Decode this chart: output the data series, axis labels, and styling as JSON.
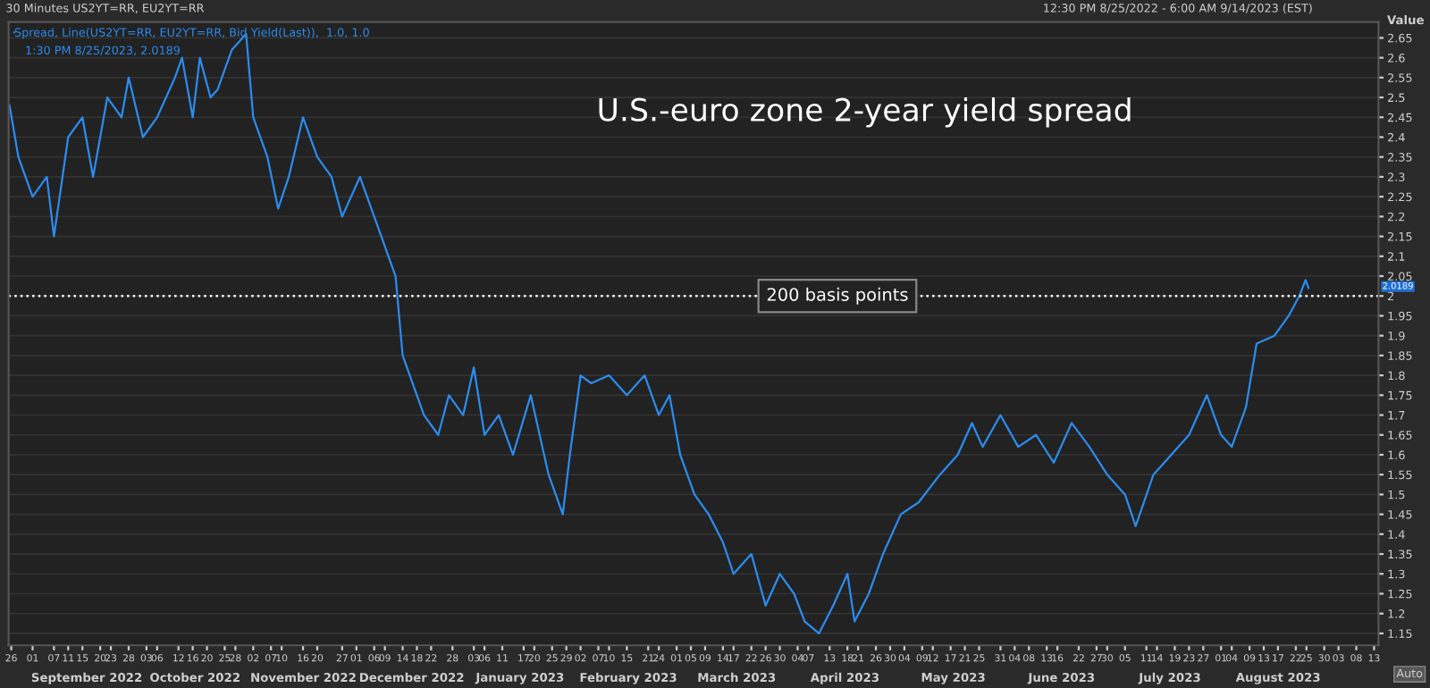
{
  "chart_data": {
    "type": "line",
    "title": "U.S.-euro zone 2-year yield spread",
    "ylabel": "Value",
    "x": [
      "2022-08-25T12:30",
      "2022-08-28",
      "2022-09-01",
      "2022-09-05",
      "2022-09-07",
      "2022-09-11",
      "2022-09-15",
      "2022-09-18",
      "2022-09-22",
      "2022-09-26",
      "2022-09-28",
      "2022-10-02",
      "2022-10-06",
      "2022-10-11",
      "2022-10-13",
      "2022-10-16",
      "2022-10-18",
      "2022-10-21",
      "2022-10-23",
      "2022-10-27",
      "2022-10-31",
      "2022-11-02",
      "2022-11-06",
      "2022-11-09",
      "2022-11-12",
      "2022-11-16",
      "2022-11-20",
      "2022-11-24",
      "2022-11-27",
      "2022-12-02",
      "2022-12-06",
      "2022-12-10",
      "2022-12-12",
      "2022-12-14",
      "2022-12-16",
      "2022-12-20",
      "2022-12-24",
      "2022-12-27",
      "2022-12-31",
      "2023-01-03",
      "2023-01-06",
      "2023-01-10",
      "2023-01-14",
      "2023-01-19",
      "2023-01-24",
      "2023-01-28",
      "2023-01-30",
      "2023-02-02",
      "2023-02-05",
      "2023-02-10",
      "2023-02-15",
      "2023-02-20",
      "2023-02-24",
      "2023-02-27",
      "2023-03-02",
      "2023-03-06",
      "2023-03-10",
      "2023-03-14",
      "2023-03-17",
      "2023-03-22",
      "2023-03-26",
      "2023-03-30",
      "2023-04-03",
      "2023-04-06",
      "2023-04-10",
      "2023-04-14",
      "2023-04-18",
      "2023-04-20",
      "2023-04-24",
      "2023-04-28",
      "2023-05-03",
      "2023-05-08",
      "2023-05-14",
      "2023-05-19",
      "2023-05-23",
      "2023-05-26",
      "2023-05-31",
      "2023-06-05",
      "2023-06-10",
      "2023-06-15",
      "2023-06-20",
      "2023-06-25",
      "2023-06-30",
      "2023-07-05",
      "2023-07-08",
      "2023-07-13",
      "2023-07-18",
      "2023-07-23",
      "2023-07-28",
      "2023-08-01",
      "2023-08-04",
      "2023-08-08",
      "2023-08-11",
      "2023-08-16",
      "2023-08-20",
      "2023-08-23",
      "2023-08-24T18:00",
      "2023-08-25T13:30"
    ],
    "series": [
      {
        "name": "Spread, Line(US2YT=RR, EU2YT=RR, Bid Yield(Last)),  1.0, 1.0",
        "color": "#2b8cf0",
        "values": [
          2.48,
          2.35,
          2.25,
          2.3,
          2.15,
          2.4,
          2.45,
          2.3,
          2.5,
          2.45,
          2.55,
          2.4,
          2.45,
          2.55,
          2.6,
          2.45,
          2.6,
          2.5,
          2.52,
          2.62,
          2.66,
          2.45,
          2.35,
          2.22,
          2.3,
          2.45,
          2.35,
          2.3,
          2.2,
          2.3,
          2.2,
          2.1,
          2.05,
          1.85,
          1.8,
          1.7,
          1.65,
          1.75,
          1.7,
          1.82,
          1.65,
          1.7,
          1.6,
          1.75,
          1.55,
          1.45,
          1.6,
          1.8,
          1.78,
          1.8,
          1.75,
          1.8,
          1.7,
          1.75,
          1.6,
          1.5,
          1.45,
          1.38,
          1.3,
          1.35,
          1.22,
          1.3,
          1.25,
          1.18,
          1.15,
          1.22,
          1.3,
          1.18,
          1.25,
          1.35,
          1.45,
          1.48,
          1.55,
          1.6,
          1.68,
          1.62,
          1.7,
          1.62,
          1.65,
          1.58,
          1.68,
          1.62,
          1.55,
          1.5,
          1.42,
          1.55,
          1.6,
          1.65,
          1.75,
          1.65,
          1.62,
          1.72,
          1.88,
          1.9,
          1.95,
          2.0,
          2.04,
          2.02
        ]
      }
    ],
    "xlim": [
      "2022-08-25T06:00",
      "2023-09-14T06:00"
    ],
    "xticks": [
      {
        "value": "2022-08-26",
        "label": "26"
      },
      {
        "value": "2022-09-01",
        "label": "01"
      },
      {
        "value": "2022-09-07",
        "label": "07"
      },
      {
        "value": "2022-09-11",
        "label": "11"
      },
      {
        "value": "2022-09-15",
        "label": "15"
      },
      {
        "value": "2022-09-20",
        "label": "20"
      },
      {
        "value": "2022-09-23",
        "label": "23"
      },
      {
        "value": "2022-09-28",
        "label": "28"
      },
      {
        "value": "2022-10-03",
        "label": "03"
      },
      {
        "value": "2022-10-06",
        "label": "06"
      },
      {
        "value": "2022-10-12",
        "label": "12"
      },
      {
        "value": "2022-10-16",
        "label": "16"
      },
      {
        "value": "2022-10-20",
        "label": "20"
      },
      {
        "value": "2022-10-25",
        "label": "25"
      },
      {
        "value": "2022-10-28",
        "label": "28"
      },
      {
        "value": "2022-11-02",
        "label": "02"
      },
      {
        "value": "2022-11-07",
        "label": "07"
      },
      {
        "value": "2022-11-10",
        "label": "10"
      },
      {
        "value": "2022-11-16",
        "label": "16"
      },
      {
        "value": "2022-11-20",
        "label": "20"
      },
      {
        "value": "2022-11-27",
        "label": "27"
      },
      {
        "value": "2022-12-01",
        "label": "01"
      },
      {
        "value": "2022-12-06",
        "label": "06"
      },
      {
        "value": "2022-12-09",
        "label": "09"
      },
      {
        "value": "2022-12-14",
        "label": "14"
      },
      {
        "value": "2022-12-18",
        "label": "18"
      },
      {
        "value": "2022-12-22",
        "label": "22"
      },
      {
        "value": "2022-12-28",
        "label": "28"
      },
      {
        "value": "2023-01-03",
        "label": "03"
      },
      {
        "value": "2023-01-06",
        "label": "06"
      },
      {
        "value": "2023-01-11",
        "label": "11"
      },
      {
        "value": "2023-01-17",
        "label": "17"
      },
      {
        "value": "2023-01-20",
        "label": "20"
      },
      {
        "value": "2023-01-25",
        "label": "25"
      },
      {
        "value": "2023-01-29",
        "label": "29"
      },
      {
        "value": "2023-02-02",
        "label": "02"
      },
      {
        "value": "2023-02-07",
        "label": "07"
      },
      {
        "value": "2023-02-10",
        "label": "10"
      },
      {
        "value": "2023-02-15",
        "label": "15"
      },
      {
        "value": "2023-02-21",
        "label": "21"
      },
      {
        "value": "2023-02-24",
        "label": "24"
      },
      {
        "value": "2023-03-01",
        "label": "01"
      },
      {
        "value": "2023-03-05",
        "label": "05"
      },
      {
        "value": "2023-03-09",
        "label": "09"
      },
      {
        "value": "2023-03-14",
        "label": "14"
      },
      {
        "value": "2023-03-17",
        "label": "17"
      },
      {
        "value": "2023-03-22",
        "label": "22"
      },
      {
        "value": "2023-03-26",
        "label": "26"
      },
      {
        "value": "2023-03-30",
        "label": "30"
      },
      {
        "value": "2023-04-04",
        "label": "04"
      },
      {
        "value": "2023-04-07",
        "label": "07"
      },
      {
        "value": "2023-04-13",
        "label": "13"
      },
      {
        "value": "2023-04-18",
        "label": "18"
      },
      {
        "value": "2023-04-21",
        "label": "21"
      },
      {
        "value": "2023-04-26",
        "label": "26"
      },
      {
        "value": "2023-04-30",
        "label": "30"
      },
      {
        "value": "2023-05-04",
        "label": "04"
      },
      {
        "value": "2023-05-09",
        "label": "09"
      },
      {
        "value": "2023-05-12",
        "label": "12"
      },
      {
        "value": "2023-05-17",
        "label": "17"
      },
      {
        "value": "2023-05-21",
        "label": "21"
      },
      {
        "value": "2023-05-25",
        "label": "25"
      },
      {
        "value": "2023-05-31",
        "label": "31"
      },
      {
        "value": "2023-06-04",
        "label": "04"
      },
      {
        "value": "2023-06-08",
        "label": "08"
      },
      {
        "value": "2023-06-13",
        "label": "13"
      },
      {
        "value": "2023-06-16",
        "label": "16"
      },
      {
        "value": "2023-06-22",
        "label": "22"
      },
      {
        "value": "2023-06-27",
        "label": "27"
      },
      {
        "value": "2023-06-30",
        "label": "30"
      },
      {
        "value": "2023-07-05",
        "label": "05"
      },
      {
        "value": "2023-07-11",
        "label": "11"
      },
      {
        "value": "2023-07-14",
        "label": "14"
      },
      {
        "value": "2023-07-19",
        "label": "19"
      },
      {
        "value": "2023-07-23",
        "label": "23"
      },
      {
        "value": "2023-07-27",
        "label": "27"
      },
      {
        "value": "2023-08-01",
        "label": "01"
      },
      {
        "value": "2023-08-04",
        "label": "04"
      },
      {
        "value": "2023-08-09",
        "label": "09"
      },
      {
        "value": "2023-08-13",
        "label": "13"
      },
      {
        "value": "2023-08-17",
        "label": "17"
      },
      {
        "value": "2023-08-22",
        "label": "22"
      },
      {
        "value": "2023-08-25",
        "label": "25"
      },
      {
        "value": "2023-08-30",
        "label": "30"
      },
      {
        "value": "2023-09-03",
        "label": "03"
      },
      {
        "value": "2023-09-08",
        "label": "08"
      },
      {
        "value": "2023-09-13",
        "label": "13"
      }
    ],
    "ylim": [
      1.12,
      2.69
    ],
    "yticks": [
      1.15,
      1.2,
      1.25,
      1.3,
      1.35,
      1.4,
      1.45,
      1.5,
      1.55,
      1.6,
      1.65,
      1.7,
      1.75,
      1.8,
      1.85,
      1.9,
      1.95,
      2,
      2.05,
      2.1,
      2.15,
      2.2,
      2.25,
      2.3,
      2.35,
      2.4,
      2.45,
      2.5,
      2.55,
      2.6,
      2.65
    ],
    "grid": "y",
    "legend": "top left",
    "marker": "none",
    "line_style": "solid",
    "ref_lines": [
      {
        "axis": "y",
        "value": 2,
        "label": "200 basis points",
        "color": "#ffffff",
        "line_style": "dotted"
      }
    ],
    "annotations": [
      "30 Minutes US2YT=RR, EU2YT=RR",
      "12:30 PM 8/25/2022 - 6:00 AM 9/14/2023 (EST)",
      "1:30 PM 8/25/2023, 2.0189",
      "Auto",
      "2.0189",
      "September 2022",
      "October 2022",
      "November 2022",
      "December 2022",
      "January 2023",
      "February 2023",
      "March 2023",
      "April 2023",
      "May 2023",
      "June 2023",
      "July 2023",
      "August 2023"
    ]
  }
}
